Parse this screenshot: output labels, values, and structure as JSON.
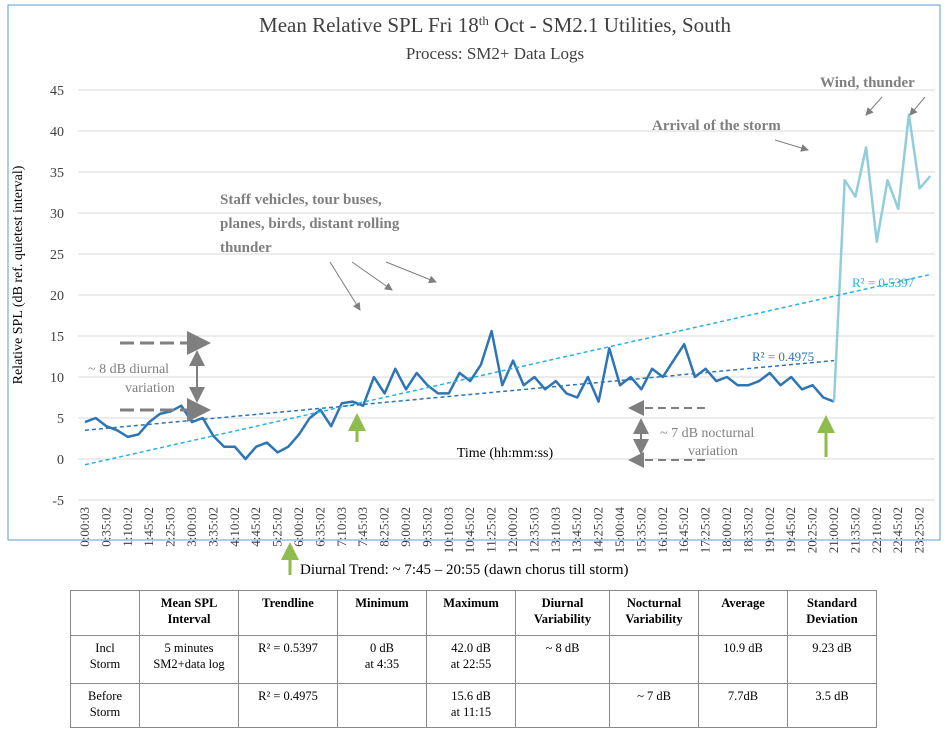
{
  "chart_data": {
    "type": "line",
    "title_parts": [
      "Mean Relative SPL Fri 18",
      "th",
      " Oct - SM2.1 Utilities, South"
    ],
    "subtitle": "Process:  SM2+ Data Logs",
    "y_label": "Relative SPL (dB ref. quietest interval)",
    "x_label": "Time (hh:mm:ss)",
    "categories": [
      "0:00:03",
      null,
      "0:35:02",
      null,
      "1:10:02",
      null,
      "1:45:02",
      null,
      "2:25:03",
      null,
      "3:00:03",
      null,
      "3:35:02",
      null,
      "4:10:02",
      null,
      "4:45:02",
      null,
      "5:25:02",
      null,
      "6:00:02",
      null,
      "6:35:02",
      null,
      "7:10:03",
      null,
      "7:45:03",
      null,
      "8:25:02",
      null,
      "9:00:02",
      null,
      "9:35:02",
      null,
      "10:10:03",
      null,
      "10:45:02",
      null,
      "11:25:02",
      null,
      "12:00:02",
      null,
      "12:35:03",
      null,
      "13:10:03",
      null,
      "13:45:02",
      null,
      "14:25:02",
      null,
      "15:00:04",
      null,
      "15:35:02",
      null,
      "16:10:02",
      null,
      "16:45:02",
      null,
      "17:25:02",
      null,
      "18:00:02",
      null,
      "18:35:02",
      null,
      "19:10:02",
      null,
      "19:45:02",
      null,
      "20:25:02",
      null,
      "21:00:02",
      null,
      "21:35:02",
      null,
      "22:10:02",
      null,
      "22:45:02",
      null,
      "23:25:02",
      null
    ],
    "series": [
      {
        "color": "#2e75b6",
        "values": [
          4.5,
          5,
          4,
          3.5,
          2.7,
          3,
          4.5,
          5.5,
          5.8,
          6.5,
          4.5,
          5,
          2.8,
          1.5,
          1.5,
          0,
          1.5,
          2,
          0.8,
          1.5,
          3,
          5,
          6,
          4,
          6.8,
          7,
          6.5,
          10,
          8,
          11,
          8.5,
          10.5,
          9,
          8,
          8,
          10.5,
          9.5,
          11.5,
          15.6,
          9,
          12,
          9,
          10,
          8.5,
          9.5,
          8,
          7.5,
          10,
          7,
          13.5,
          9,
          10,
          8.5,
          11,
          10,
          12,
          14,
          10,
          11,
          9.5,
          10,
          9,
          9,
          9.5,
          10.5,
          9,
          10,
          8.5,
          9,
          7.5,
          7,
          null,
          null,
          null,
          null,
          null,
          null,
          null,
          null,
          null
        ]
      },
      {
        "color": "#92cddc",
        "values": [
          null,
          null,
          null,
          null,
          null,
          null,
          null,
          null,
          null,
          null,
          null,
          null,
          null,
          null,
          null,
          null,
          null,
          null,
          null,
          null,
          null,
          null,
          null,
          null,
          null,
          null,
          null,
          null,
          null,
          null,
          null,
          null,
          null,
          null,
          null,
          null,
          null,
          null,
          null,
          null,
          null,
          null,
          null,
          null,
          null,
          null,
          null,
          null,
          null,
          null,
          null,
          null,
          null,
          null,
          null,
          null,
          null,
          null,
          null,
          null,
          null,
          null,
          null,
          null,
          null,
          null,
          null,
          null,
          null,
          null,
          7,
          34,
          32,
          38,
          26.5,
          34,
          30.5,
          42,
          33,
          34.5
        ]
      }
    ],
    "trendlines": [
      {
        "label": "R² = 0.5397",
        "color": "#2ab0e0",
        "values": [
          -0.7,
          22.5
        ]
      },
      {
        "label": "R² = 0.4975",
        "color": "#2e75b6",
        "values": [
          3.5,
          12
        ]
      }
    ],
    "annotations": [
      "Staff vehicles, tour buses,",
      "planes, birds, distant rolling",
      "thunder",
      "Arrival of the storm",
      "Wind, thunder",
      "~ 8 dB diurnal",
      "variation",
      "~ 7 dB nocturnal",
      "variation"
    ],
    "ylim": [
      -5,
      45
    ],
    "yticks": [
      -5,
      0,
      5,
      10,
      15,
      20,
      25,
      30,
      35,
      40,
      45
    ],
    "grid": true
  },
  "footnote": "Diurnal Trend: ~ 7:45 – 20:55 (dawn chorus till storm)",
  "table": {
    "header": [
      [],
      [
        "Mean SPL",
        "Interval"
      ],
      [
        "Trendline"
      ],
      [
        "Minimum"
      ],
      [
        "Maximum"
      ],
      [
        "Diurnal",
        "Variability"
      ],
      [
        "Nocturnal",
        "Variability"
      ],
      [
        "Average"
      ],
      [
        "Standard",
        "Deviation"
      ]
    ],
    "rows": [
      [
        [
          "Incl",
          "Storm"
        ],
        [
          "5 minutes",
          "SM2+data log"
        ],
        [
          "R² = 0.5397"
        ],
        [
          "0 dB",
          "at 4:35"
        ],
        [
          "42.0 dB",
          "at 22:55"
        ],
        [
          "~ 8 dB"
        ],
        [],
        [
          "10.9 dB"
        ],
        [
          "9.23 dB"
        ]
      ],
      [
        [
          "Before",
          "Storm"
        ],
        [],
        [
          "R² = 0.4975"
        ],
        [],
        [
          "15.6 dB",
          "at 11:15"
        ],
        [],
        [
          "~  7 dB"
        ],
        [
          "7.7dB"
        ],
        [
          "3.5 dB"
        ]
      ]
    ]
  }
}
